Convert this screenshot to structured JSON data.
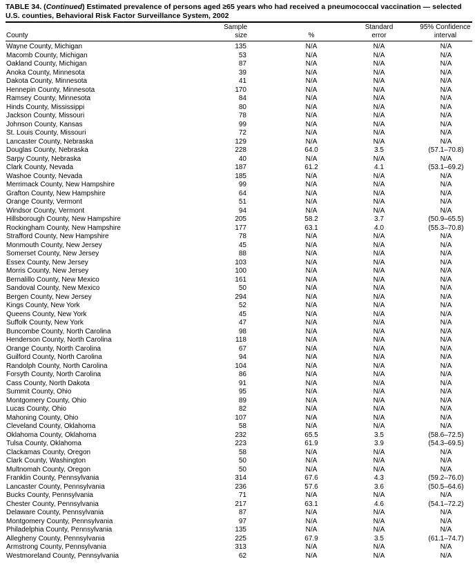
{
  "title": {
    "prefix": "TABLE 34. (",
    "continued": "Continued",
    "text": ") Estimated prevalence of persons aged ≥65 years who had received a pneumococcal vaccination — selected U.S. counties, Behavioral Risk Factor Surveillance System, 2002"
  },
  "columns": {
    "county": "County",
    "sample_size": [
      "Sample",
      "size"
    ],
    "percent": "%",
    "standard_error": [
      "Standard",
      "error"
    ],
    "ci": [
      "95% Confidence",
      "interval"
    ]
  },
  "rows": [
    [
      "Wayne County, Michigan",
      "135",
      "N/A",
      "N/A",
      "N/A"
    ],
    [
      "Macomb County, Michigan",
      "53",
      "N/A",
      "N/A",
      "N/A"
    ],
    [
      "Oakland County, Michigan",
      "87",
      "N/A",
      "N/A",
      "N/A"
    ],
    [
      "Anoka County, Minnesota",
      "39",
      "N/A",
      "N/A",
      "N/A"
    ],
    [
      "Dakota County, Minnesota",
      "41",
      "N/A",
      "N/A",
      "N/A"
    ],
    [
      "Hennepin County, Minnesota",
      "170",
      "N/A",
      "N/A",
      "N/A"
    ],
    [
      "Ramsey County, Minnesota",
      "84",
      "N/A",
      "N/A",
      "N/A"
    ],
    [
      "Hinds County, Mississippi",
      "80",
      "N/A",
      "N/A",
      "N/A"
    ],
    [
      "Jackson County, Missouri",
      "78",
      "N/A",
      "N/A",
      "N/A"
    ],
    [
      "Johnson County, Kansas",
      "99",
      "N/A",
      "N/A",
      "N/A"
    ],
    [
      "St. Louis County, Missouri",
      "72",
      "N/A",
      "N/A",
      "N/A"
    ],
    [
      "Lancaster County, Nebraska",
      "129",
      "N/A",
      "N/A",
      "N/A"
    ],
    [
      "Douglas County, Nebraska",
      "228",
      "64.0",
      "3.5",
      "(57.1–70.8)"
    ],
    [
      "Sarpy County, Nebraska",
      "40",
      "N/A",
      "N/A",
      "N/A"
    ],
    [
      "Clark County, Nevada",
      "187",
      "61.2",
      "4.1",
      "(53.1–69.2)"
    ],
    [
      "Washoe County, Nevada",
      "185",
      "N/A",
      "N/A",
      "N/A"
    ],
    [
      "Merrimack County, New Hampshire",
      "99",
      "N/A",
      "N/A",
      "N/A"
    ],
    [
      "Grafton County, New Hampshire",
      "64",
      "N/A",
      "N/A",
      "N/A"
    ],
    [
      "Orange County, Vermont",
      "51",
      "N/A",
      "N/A",
      "N/A"
    ],
    [
      "Windsor County, Vermont",
      "94",
      "N/A",
      "N/A",
      "N/A"
    ],
    [
      "Hillsborough County, New Hampshire",
      "205",
      "58.2",
      "3.7",
      "(50.9–65.5)"
    ],
    [
      "Rockingham County, New Hampshire",
      "177",
      "63.1",
      "4.0",
      "(55.3–70.8)"
    ],
    [
      "Strafford County, New Hampshire",
      "78",
      "N/A",
      "N/A",
      "N/A"
    ],
    [
      "Monmouth County, New Jersey",
      "45",
      "N/A",
      "N/A",
      "N/A"
    ],
    [
      "Somerset County, New Jersey",
      "88",
      "N/A",
      "N/A",
      "N/A"
    ],
    [
      "Essex County, New Jersey",
      "103",
      "N/A",
      "N/A",
      "N/A"
    ],
    [
      "Morris County, New Jersey",
      "100",
      "N/A",
      "N/A",
      "N/A"
    ],
    [
      "Bernalillo County, New Mexico",
      "161",
      "N/A",
      "N/A",
      "N/A"
    ],
    [
      "Sandoval County, New Mexico",
      "50",
      "N/A",
      "N/A",
      "N/A"
    ],
    [
      "Bergen County, New Jersey",
      "294",
      "N/A",
      "N/A",
      "N/A"
    ],
    [
      "Kings County, New York",
      "52",
      "N/A",
      "N/A",
      "N/A"
    ],
    [
      "Queens County, New York",
      "45",
      "N/A",
      "N/A",
      "N/A"
    ],
    [
      "Suffolk County, New York",
      "47",
      "N/A",
      "N/A",
      "N/A"
    ],
    [
      "Buncombe County, North Carolina",
      "98",
      "N/A",
      "N/A",
      "N/A"
    ],
    [
      "Henderson County, North Carolina",
      "118",
      "N/A",
      "N/A",
      "N/A"
    ],
    [
      "Orange County, North Carolina",
      "67",
      "N/A",
      "N/A",
      "N/A"
    ],
    [
      "Guilford County, North Carolina",
      "94",
      "N/A",
      "N/A",
      "N/A"
    ],
    [
      "Randolph County, North Carolina",
      "104",
      "N/A",
      "N/A",
      "N/A"
    ],
    [
      "Forsyth County, North Carolina",
      "86",
      "N/A",
      "N/A",
      "N/A"
    ],
    [
      "Cass County, North Dakota",
      "91",
      "N/A",
      "N/A",
      "N/A"
    ],
    [
      "Summit County, Ohio",
      "95",
      "N/A",
      "N/A",
      "N/A"
    ],
    [
      "Montgomery County, Ohio",
      "89",
      "N/A",
      "N/A",
      "N/A"
    ],
    [
      "Lucas County, Ohio",
      "82",
      "N/A",
      "N/A",
      "N/A"
    ],
    [
      "Mahoning County, Ohio",
      "107",
      "N/A",
      "N/A",
      "N/A"
    ],
    [
      "Cleveland County, Oklahoma",
      "58",
      "N/A",
      "N/A",
      "N/A"
    ],
    [
      "Oklahoma County, Oklahoma",
      "232",
      "65.5",
      "3.5",
      "(58.6–72.5)"
    ],
    [
      "Tulsa County, Oklahoma",
      "223",
      "61.9",
      "3.9",
      "(54.3–69.5)"
    ],
    [
      "Clackamas County, Oregon",
      "58",
      "N/A",
      "N/A",
      "N/A"
    ],
    [
      "Clark County, Washington",
      "50",
      "N/A",
      "N/A",
      "N/A"
    ],
    [
      "Multnomah County, Oregon",
      "50",
      "N/A",
      "N/A",
      "N/A"
    ],
    [
      "Franklin County, Pennsylvania",
      "314",
      "67.6",
      "4.3",
      "(59.2–76.0)"
    ],
    [
      "Lancaster County, Pennsylvania",
      "236",
      "57.6",
      "3.6",
      "(50.5–64.6)"
    ],
    [
      "Bucks County, Pennsylvania",
      "71",
      "N/A",
      "N/A",
      "N/A"
    ],
    [
      "Chester County, Pennsylvania",
      "217",
      "63.1",
      "4.6",
      "(54.1–72.2)"
    ],
    [
      "Delaware County, Pennsylvania",
      "87",
      "N/A",
      "N/A",
      "N/A"
    ],
    [
      "Montgomery County, Pennsylvania",
      "97",
      "N/A",
      "N/A",
      "N/A"
    ],
    [
      "Philadelphia County, Pennsylvania",
      "135",
      "N/A",
      "N/A",
      "N/A"
    ],
    [
      "Allegheny County, Pennsylvania",
      "225",
      "67.9",
      "3.5",
      "(61.1–74.7)"
    ],
    [
      "Armstrong County, Pennsylvania",
      "313",
      "N/A",
      "N/A",
      "N/A"
    ],
    [
      "Westmoreland County, Pennsylvania",
      "62",
      "N/A",
      "N/A",
      "N/A"
    ]
  ]
}
